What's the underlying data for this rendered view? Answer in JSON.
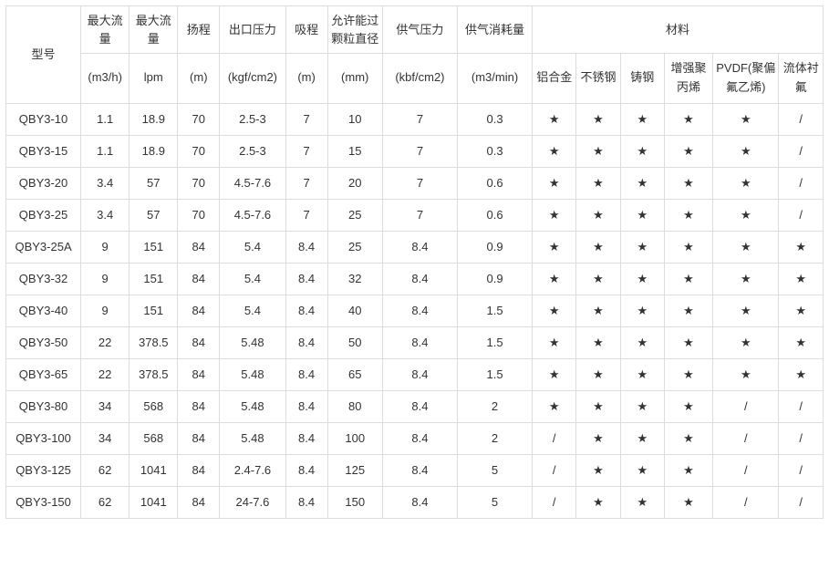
{
  "headers": {
    "model": "型号",
    "maxFlow1": "最大流量",
    "maxFlow2": "最大流量",
    "head": "扬程",
    "outletPressure": "出口压力",
    "suction": "吸程",
    "particleDia": "允许能过颗粒直径",
    "airPressure": "供气压力",
    "airConsumption": "供气消耗量",
    "material": "材料"
  },
  "units": {
    "maxFlow1": "(m3/h)",
    "maxFlow2": "lpm",
    "head": "(m)",
    "outletPressure": "(kgf/cm2)",
    "suction": "(m)",
    "particleDia": "(mm)",
    "airPressure": "(kbf/cm2)",
    "airConsumption": "(m3/min)"
  },
  "materials": {
    "aluminum": "铝合金",
    "stainless": "不锈钢",
    "castSteel": "铸钢",
    "reinforcedPP": "增强聚丙烯",
    "pvdf": "PVDF(聚偏氟乙烯)",
    "fluoro": "流体衬氟"
  },
  "symbols": {
    "star": "★",
    "slash": "/"
  },
  "colWidths": {
    "model": 68,
    "c1": 44,
    "c2": 44,
    "c3": 38,
    "c4": 60,
    "c5": 38,
    "c6": 50,
    "c7": 68,
    "c8": 68,
    "m1": 40,
    "m2": 40,
    "m3": 40,
    "m4": 44,
    "m5": 60,
    "m6": 40
  },
  "rows": [
    {
      "model": "QBY3-10",
      "v": [
        "1.1",
        "18.9",
        "70",
        "2.5-3",
        "7",
        "10",
        "7",
        "0.3"
      ],
      "m": [
        "★",
        "★",
        "★",
        "★",
        "★",
        "/"
      ]
    },
    {
      "model": "QBY3-15",
      "v": [
        "1.1",
        "18.9",
        "70",
        "2.5-3",
        "7",
        "15",
        "7",
        "0.3"
      ],
      "m": [
        "★",
        "★",
        "★",
        "★",
        "★",
        "/"
      ]
    },
    {
      "model": "QBY3-20",
      "v": [
        "3.4",
        "57",
        "70",
        "4.5-7.6",
        "7",
        "20",
        "7",
        "0.6"
      ],
      "m": [
        "★",
        "★",
        "★",
        "★",
        "★",
        "/"
      ]
    },
    {
      "model": "QBY3-25",
      "v": [
        "3.4",
        "57",
        "70",
        "4.5-7.6",
        "7",
        "25",
        "7",
        "0.6"
      ],
      "m": [
        "★",
        "★",
        "★",
        "★",
        "★",
        "/"
      ]
    },
    {
      "model": "QBY3-25A",
      "v": [
        "9",
        "151",
        "84",
        "5.4",
        "8.4",
        "25",
        "8.4",
        "0.9"
      ],
      "m": [
        "★",
        "★",
        "★",
        "★",
        "★",
        "★"
      ]
    },
    {
      "model": "QBY3-32",
      "v": [
        "9",
        "151",
        "84",
        "5.4",
        "8.4",
        "32",
        "8.4",
        "0.9"
      ],
      "m": [
        "★",
        "★",
        "★",
        "★",
        "★",
        "★"
      ]
    },
    {
      "model": "QBY3-40",
      "v": [
        "9",
        "151",
        "84",
        "5.4",
        "8.4",
        "40",
        "8.4",
        "1.5"
      ],
      "m": [
        "★",
        "★",
        "★",
        "★",
        "★",
        "★"
      ]
    },
    {
      "model": "QBY3-50",
      "v": [
        "22",
        "378.5",
        "84",
        "5.48",
        "8.4",
        "50",
        "8.4",
        "1.5"
      ],
      "m": [
        "★",
        "★",
        "★",
        "★",
        "★",
        "★"
      ]
    },
    {
      "model": "QBY3-65",
      "v": [
        "22",
        "378.5",
        "84",
        "5.48",
        "8.4",
        "65",
        "8.4",
        "1.5"
      ],
      "m": [
        "★",
        "★",
        "★",
        "★",
        "★",
        "★"
      ]
    },
    {
      "model": "QBY3-80",
      "v": [
        "34",
        "568",
        "84",
        "5.48",
        "8.4",
        "80",
        "8.4",
        "2"
      ],
      "m": [
        "★",
        "★",
        "★",
        "★",
        "/",
        "/"
      ]
    },
    {
      "model": "QBY3-100",
      "v": [
        "34",
        "568",
        "84",
        "5.48",
        "8.4",
        "100",
        "8.4",
        "2"
      ],
      "m": [
        "/",
        "★",
        "★",
        "★",
        "/",
        "/"
      ]
    },
    {
      "model": "QBY3-125",
      "v": [
        "62",
        "1041",
        "84",
        "2.4-7.6",
        "8.4",
        "125",
        "8.4",
        "5"
      ],
      "m": [
        "/",
        "★",
        "★",
        "★",
        "/",
        "/"
      ]
    },
    {
      "model": "QBY3-150",
      "v": [
        "62",
        "1041",
        "84",
        "24-7.6",
        "8.4",
        "150",
        "8.4",
        "5"
      ],
      "m": [
        "/",
        "★",
        "★",
        "★",
        "/",
        "/"
      ]
    }
  ],
  "style": {
    "borderColor": "#dddddd",
    "textColor": "#333333",
    "bgColor": "#ffffff",
    "fontSize": 13
  }
}
